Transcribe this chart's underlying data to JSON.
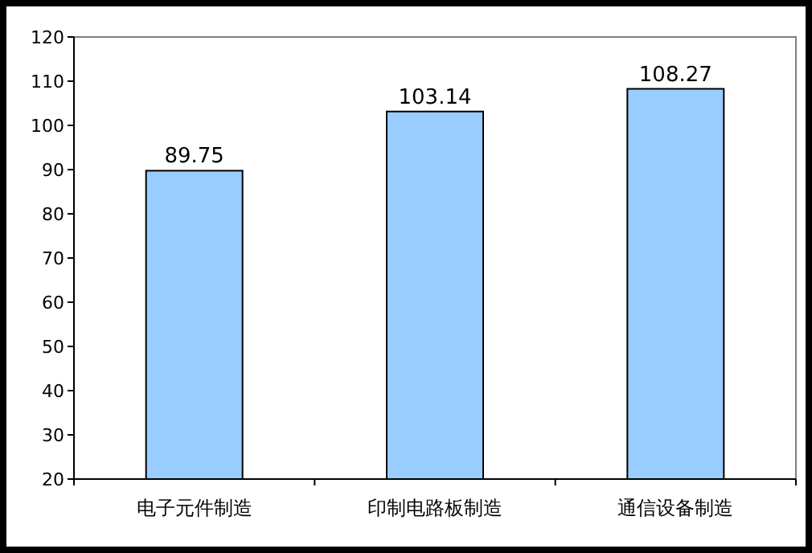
{
  "chart_data": {
    "type": "bar",
    "categories": [
      "电子元件制造",
      "印制电路板制造",
      "通信设备制造"
    ],
    "values": [
      89.75,
      103.14,
      108.27
    ],
    "color": "#99ccff",
    "ylim": [
      20,
      120
    ],
    "yticks": [
      20,
      30,
      40,
      50,
      60,
      70,
      80,
      90,
      100,
      110,
      120
    ],
    "data_labels": true
  }
}
